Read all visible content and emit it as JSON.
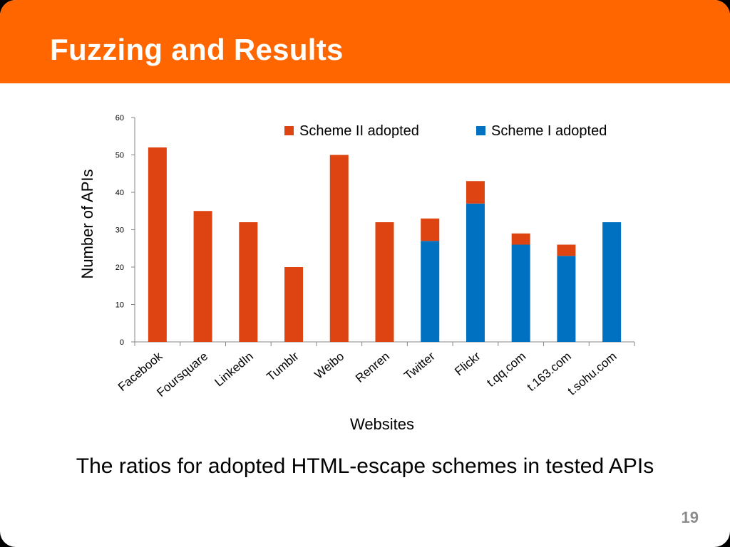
{
  "slide": {
    "title": "Fuzzing and Results",
    "caption": "The ratios for adopted HTML-escape schemes in tested APIs",
    "page_number": "19",
    "header_color": "#ff6600"
  },
  "chart_data": {
    "type": "bar",
    "stacked": true,
    "categories": [
      "Facebook",
      "Foursquare",
      "LinkedIn",
      "Tumblr",
      "Weibo",
      "Renren",
      "Twitter",
      "Flickr",
      "t.qq.com",
      "t.163.com",
      "t.sohu.com"
    ],
    "series": [
      {
        "name": "Scheme I adopted",
        "color": "#0070c0",
        "values": [
          0,
          0,
          0,
          0,
          0,
          0,
          27,
          37,
          26,
          23,
          32
        ]
      },
      {
        "name": "Scheme II adopted",
        "color": "#dd4411",
        "values": [
          52,
          35,
          32,
          20,
          50,
          32,
          6,
          6,
          3,
          3,
          0
        ]
      }
    ],
    "legend_order": [
      "Scheme II adopted",
      "Scheme I adopted"
    ],
    "legend_position": "top-right",
    "xlabel": "Websites",
    "ylabel": "Number of APIs",
    "ylim": [
      0,
      60
    ],
    "yticks": [
      "0",
      "10",
      "20",
      "30",
      "40",
      "50",
      "60"
    ],
    "grid": false
  }
}
